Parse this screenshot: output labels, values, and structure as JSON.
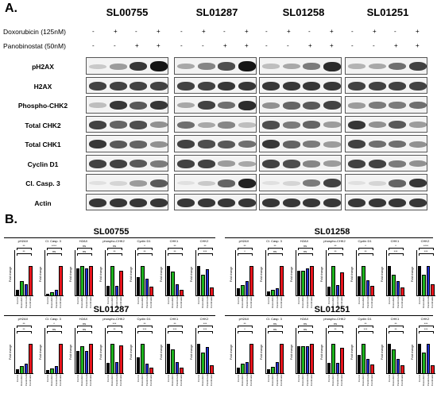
{
  "panel_a_label": "A.",
  "panel_b_label": "B.",
  "cell_lines": [
    "SL00755",
    "SL01287",
    "SL01258",
    "SL01251"
  ],
  "treatments": [
    {
      "label": "Doxorubicin (125nM)",
      "signs": [
        "-",
        "+",
        "-",
        "+"
      ]
    },
    {
      "label": "Panobinostat (50nM)",
      "signs": [
        "-",
        "-",
        "+",
        "+"
      ]
    }
  ],
  "blot_rows": [
    "pH2AX",
    "H2AX",
    "Phospho-CHK2",
    "Total CHK2",
    "Total CHK1",
    "Cyclin D1",
    "Cl. Casp. 3",
    "Actin"
  ],
  "bar_colors": {
    "control": "#000000",
    "doxorubicin": "#1db31d",
    "panobinostat": "#1f2fd6",
    "combination": "#e8141c"
  },
  "chart_panels": [
    {
      "name": "SL00755"
    },
    {
      "name": "SL01258"
    },
    {
      "name": "SL01287"
    },
    {
      "name": "SL01251"
    }
  ],
  "chart_titles": [
    "pH2AX",
    "Cl. Casp. 3",
    "H2AX",
    "phospho-CHK2",
    "Cyclin D1",
    "CHK1",
    "CHK2"
  ],
  "y_axis_label": "Fold change",
  "x_tick_labels": [
    "Control",
    "Doxorubicin",
    "Panobinostat",
    "Combination"
  ],
  "chart_data": [
    {
      "type": "bar",
      "title": "SL00755",
      "categories": [
        "pH2AX",
        "Cl. Casp. 3",
        "H2AX",
        "phospho-CHK2",
        "Cyclin D1",
        "CHK1",
        "CHK2"
      ],
      "series": [
        {
          "name": "Control",
          "values": [
            1.0,
            1.0,
            1.0,
            1.0,
            1.0,
            1.0,
            1.0
          ]
        },
        {
          "name": "Doxorubicin",
          "values": [
            2.5,
            1.5,
            1.1,
            3.0,
            1.6,
            0.8,
            0.7
          ]
        },
        {
          "name": "Panobinostat",
          "values": [
            2.0,
            2.5,
            1.0,
            1.0,
            0.9,
            0.4,
            0.9
          ]
        },
        {
          "name": "Combination",
          "values": [
            5.0,
            12.0,
            1.1,
            2.5,
            0.5,
            0.2,
            0.3
          ]
        }
      ],
      "significance": [
        [
          "**",
          "**"
        ],
        [
          "ns",
          "****"
        ],
        [
          "ns",
          "ns"
        ],
        [
          "**",
          "ns"
        ],
        [
          "**",
          "*"
        ],
        [
          "**",
          "**"
        ],
        [
          "***",
          "**"
        ]
      ]
    },
    {
      "type": "bar",
      "title": "SL01258",
      "categories": [
        "pH2AX",
        "Cl. Casp. 3",
        "H2AX",
        "phospho-CHK2",
        "Cyclin D1",
        "CHK1",
        "CHK2"
      ],
      "series": [
        {
          "name": "Control",
          "values": [
            1.0,
            1.0,
            1.0,
            1.0,
            1.0,
            1.0,
            1.0
          ]
        },
        {
          "name": "Doxorubicin",
          "values": [
            1.5,
            1.2,
            1.0,
            3.2,
            1.5,
            0.7,
            0.7
          ]
        },
        {
          "name": "Panobinostat",
          "values": [
            2.0,
            1.5,
            1.1,
            1.2,
            0.8,
            0.5,
            1.0
          ]
        },
        {
          "name": "Combination",
          "values": [
            4.0,
            6.0,
            1.2,
            2.5,
            0.5,
            0.3,
            0.4
          ]
        }
      ],
      "significance": [
        [
          "*",
          "**"
        ],
        [
          "ns",
          "**"
        ],
        [
          "ns",
          "ns"
        ],
        [
          "**",
          "**"
        ],
        [
          "**",
          "*"
        ],
        [
          "***",
          "*"
        ],
        [
          "***",
          "****"
        ]
      ]
    },
    {
      "type": "bar",
      "title": "SL01287",
      "categories": [
        "pH2AX",
        "Cl. Casp. 3",
        "H2AX",
        "phospho-CHK2",
        "Cyclin D1",
        "CHK1",
        "CHK2"
      ],
      "series": [
        {
          "name": "Control",
          "values": [
            1.0,
            1.0,
            1.0,
            1.0,
            1.0,
            1.0,
            1.0
          ]
        },
        {
          "name": "Doxorubicin",
          "values": [
            1.5,
            1.5,
            1.2,
            2.8,
            1.8,
            0.8,
            0.7
          ]
        },
        {
          "name": "Panobinostat",
          "values": [
            2.0,
            2.0,
            1.0,
            1.1,
            0.6,
            0.4,
            0.9
          ]
        },
        {
          "name": "Combination",
          "values": [
            6.0,
            8.0,
            1.3,
            2.6,
            0.4,
            0.2,
            0.3
          ]
        }
      ],
      "significance": [
        [
          "**",
          "**"
        ],
        [
          "ns",
          "*"
        ],
        [
          "ns",
          "ns"
        ],
        [
          "**",
          "***"
        ],
        [
          "***",
          "**"
        ],
        [
          "***",
          "**"
        ],
        [
          "***",
          "***"
        ]
      ]
    },
    {
      "type": "bar",
      "title": "SL01251",
      "categories": [
        "pH2AX",
        "Cl. Casp. 3",
        "H2AX",
        "phospho-CHK2",
        "Cyclin D1",
        "CHK1",
        "CHK2"
      ],
      "series": [
        {
          "name": "Control",
          "values": [
            1.0,
            1.0,
            1.0,
            1.0,
            1.0,
            1.0,
            1.0
          ]
        },
        {
          "name": "Doxorubicin",
          "values": [
            1.5,
            1.5,
            1.0,
            2.8,
            1.6,
            0.8,
            0.7
          ]
        },
        {
          "name": "Panobinostat",
          "values": [
            1.8,
            2.5,
            1.0,
            1.0,
            0.8,
            0.5,
            1.0
          ]
        },
        {
          "name": "Combination",
          "values": [
            4.5,
            6.5,
            1.1,
            2.4,
            0.5,
            0.3,
            0.3
          ]
        }
      ],
      "significance": [
        [
          "*",
          "**"
        ],
        [
          "ns",
          "ns"
        ],
        [
          "ns",
          "ns"
        ],
        [
          "**",
          "ns"
        ],
        [
          "***",
          "**"
        ],
        [
          "**",
          "**"
        ],
        [
          "***",
          "***"
        ]
      ]
    }
  ],
  "blot_intensity": {
    "pH2AX": [
      [
        0.15,
        0.35,
        0.8,
        0.95
      ],
      [
        0.3,
        0.45,
        0.7,
        0.95
      ],
      [
        0.2,
        0.3,
        0.5,
        0.85
      ],
      [
        0.25,
        0.3,
        0.55,
        0.75
      ]
    ],
    "H2AX": [
      [
        0.75,
        0.75,
        0.75,
        0.75
      ],
      [
        0.75,
        0.75,
        0.8,
        0.8
      ],
      [
        0.8,
        0.8,
        0.8,
        0.8
      ],
      [
        0.75,
        0.75,
        0.75,
        0.75
      ]
    ],
    "Phospho-CHK2": [
      [
        0.2,
        0.8,
        0.65,
        0.8
      ],
      [
        0.3,
        0.75,
        0.55,
        0.85
      ],
      [
        0.4,
        0.6,
        0.65,
        0.75
      ],
      [
        0.35,
        0.5,
        0.5,
        0.55
      ]
    ],
    "Total CHK2": [
      [
        0.75,
        0.6,
        0.7,
        0.4
      ],
      [
        0.55,
        0.3,
        0.45,
        0.2
      ],
      [
        0.7,
        0.5,
        0.6,
        0.35
      ],
      [
        0.8,
        0.4,
        0.65,
        0.35
      ]
    ],
    "Total CHK1": [
      [
        0.8,
        0.65,
        0.6,
        0.4
      ],
      [
        0.75,
        0.7,
        0.65,
        0.55
      ],
      [
        0.8,
        0.6,
        0.5,
        0.35
      ],
      [
        0.75,
        0.55,
        0.55,
        0.4
      ]
    ],
    "Cyclin D1": [
      [
        0.75,
        0.75,
        0.65,
        0.5
      ],
      [
        0.75,
        0.75,
        0.35,
        0.3
      ],
      [
        0.75,
        0.7,
        0.45,
        0.35
      ],
      [
        0.75,
        0.75,
        0.5,
        0.4
      ]
    ],
    "Cl. Casp. 3": [
      [
        0.05,
        0.1,
        0.35,
        0.65
      ],
      [
        0.05,
        0.15,
        0.6,
        0.9
      ],
      [
        0.05,
        0.1,
        0.5,
        0.75
      ],
      [
        0.05,
        0.1,
        0.6,
        0.8
      ]
    ],
    "Actin": [
      [
        0.8,
        0.8,
        0.8,
        0.8
      ],
      [
        0.8,
        0.8,
        0.8,
        0.8
      ],
      [
        0.8,
        0.8,
        0.8,
        0.8
      ],
      [
        0.8,
        0.8,
        0.8,
        0.8
      ]
    ]
  }
}
